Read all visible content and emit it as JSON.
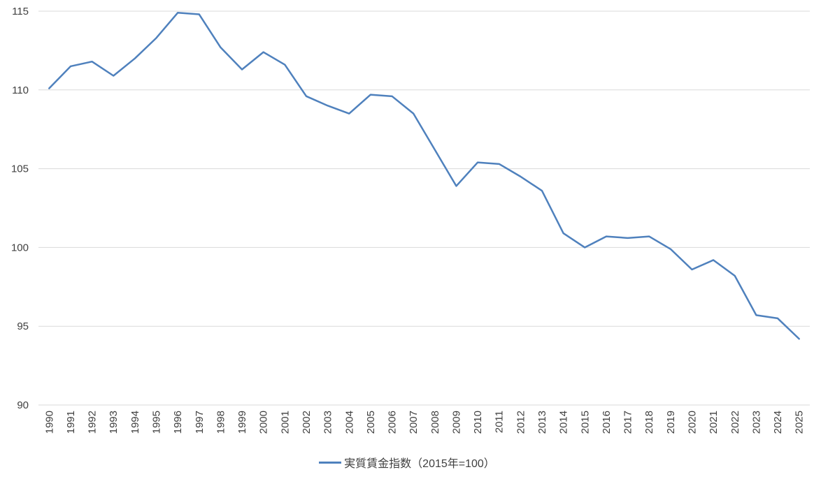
{
  "chart_data": {
    "type": "line",
    "title": "",
    "xlabel": "",
    "ylabel": "",
    "categories": [
      "1990",
      "1991",
      "1992",
      "1993",
      "1994",
      "1995",
      "1996",
      "1997",
      "1998",
      "1999",
      "2000",
      "2001",
      "2002",
      "2003",
      "2004",
      "2005",
      "2006",
      "2007",
      "2008",
      "2009",
      "2010",
      "2011",
      "2012",
      "2013",
      "2014",
      "2015",
      "2016",
      "2017",
      "2018",
      "2019",
      "2020",
      "2021",
      "2022",
      "2023",
      "2024",
      "2025"
    ],
    "series": [
      {
        "name": "実質賃金指数（2015年=100）",
        "values": [
          110.1,
          111.5,
          111.8,
          110.9,
          112.0,
          113.3,
          114.9,
          114.8,
          112.7,
          111.3,
          112.4,
          111.6,
          109.6,
          109.0,
          108.5,
          109.7,
          109.6,
          108.5,
          106.2,
          103.9,
          105.4,
          105.3,
          104.5,
          103.6,
          100.9,
          100.0,
          100.7,
          100.6,
          100.7,
          99.9,
          98.6,
          99.2,
          98.2,
          95.7,
          95.5,
          94.2
        ]
      }
    ],
    "ylim": [
      90,
      115
    ],
    "yticks": [
      90,
      95,
      100,
      105,
      110,
      115
    ],
    "grid": true,
    "legend_position": "bottom",
    "colors": {
      "line": "#4f81bd",
      "grid": "#d9d9d9",
      "tick_text": "#404040",
      "background": "#ffffff"
    }
  },
  "legend": {
    "label": "実質賃金指数（2015年=100）"
  }
}
